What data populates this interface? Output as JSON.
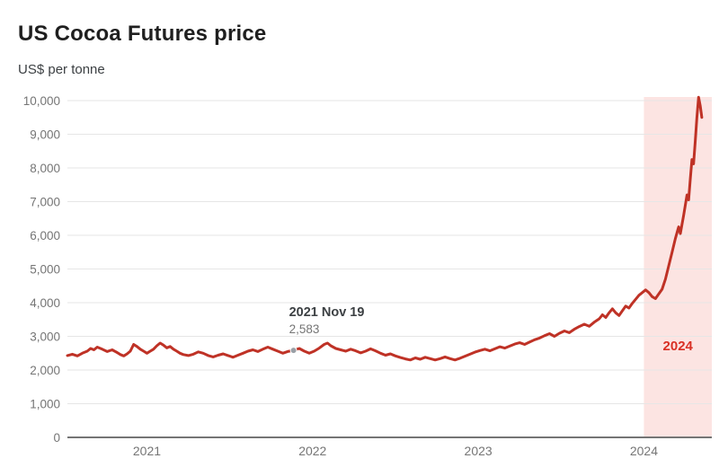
{
  "chart_data": {
    "type": "line",
    "title": "US Cocoa Futures price",
    "subtitle": "US$ per tonne",
    "x_domain": [
      2020.52,
      2024.41
    ],
    "y_domain": [
      0,
      10000
    ],
    "grid": true,
    "legend_position": "none",
    "colors": {
      "line": "#bf3226",
      "grid": "#e6e6e6",
      "axis_baseline": "#757575",
      "tick_label": "#757575",
      "annotation_label": "#3c4043",
      "annotation_value": "#757575",
      "annotation_dot": "#9aa0a6"
    },
    "y_ticks": [
      0,
      1000,
      2000,
      3000,
      4000,
      5000,
      6000,
      7000,
      8000,
      9000,
      10000
    ],
    "y_tick_labels": [
      "0",
      "1,000",
      "2,000",
      "3,000",
      "4,000",
      "5,000",
      "6,000",
      "7,000",
      "8,000",
      "9,000",
      "10,000"
    ],
    "x_ticks": [
      2021,
      2022,
      2023,
      2024
    ],
    "x_tick_labels": [
      "2021",
      "2022",
      "2023",
      "2024"
    ],
    "annotation": {
      "label": "2021 Nov 19",
      "value_label": "2,583",
      "x": 2021.885,
      "y": 2583
    },
    "highlight_band": {
      "from": 2024.0,
      "to": 2024.41,
      "label": "2024",
      "fill": "#fce4e2",
      "label_color": "#d93025"
    },
    "series": [
      {
        "name": "US Cocoa Futures price (US$ per tonne)",
        "color": "#bf3226",
        "points": [
          [
            2020.52,
            2430
          ],
          [
            2020.55,
            2470
          ],
          [
            2020.58,
            2420
          ],
          [
            2020.61,
            2500
          ],
          [
            2020.64,
            2560
          ],
          [
            2020.66,
            2640
          ],
          [
            2020.68,
            2600
          ],
          [
            2020.7,
            2680
          ],
          [
            2020.73,
            2620
          ],
          [
            2020.76,
            2550
          ],
          [
            2020.79,
            2600
          ],
          [
            2020.82,
            2520
          ],
          [
            2020.84,
            2460
          ],
          [
            2020.86,
            2420
          ],
          [
            2020.88,
            2480
          ],
          [
            2020.9,
            2560
          ],
          [
            2020.92,
            2760
          ],
          [
            2020.94,
            2700
          ],
          [
            2020.96,
            2620
          ],
          [
            2020.98,
            2560
          ],
          [
            2021.0,
            2500
          ],
          [
            2021.02,
            2560
          ],
          [
            2021.04,
            2620
          ],
          [
            2021.06,
            2720
          ],
          [
            2021.08,
            2800
          ],
          [
            2021.1,
            2740
          ],
          [
            2021.12,
            2660
          ],
          [
            2021.14,
            2700
          ],
          [
            2021.16,
            2620
          ],
          [
            2021.18,
            2560
          ],
          [
            2021.2,
            2500
          ],
          [
            2021.22,
            2460
          ],
          [
            2021.25,
            2430
          ],
          [
            2021.28,
            2470
          ],
          [
            2021.31,
            2540
          ],
          [
            2021.34,
            2500
          ],
          [
            2021.37,
            2430
          ],
          [
            2021.4,
            2390
          ],
          [
            2021.43,
            2440
          ],
          [
            2021.46,
            2480
          ],
          [
            2021.49,
            2430
          ],
          [
            2021.52,
            2380
          ],
          [
            2021.55,
            2440
          ],
          [
            2021.58,
            2500
          ],
          [
            2021.61,
            2560
          ],
          [
            2021.64,
            2600
          ],
          [
            2021.67,
            2550
          ],
          [
            2021.7,
            2620
          ],
          [
            2021.73,
            2680
          ],
          [
            2021.76,
            2620
          ],
          [
            2021.79,
            2560
          ],
          [
            2021.82,
            2500
          ],
          [
            2021.85,
            2550
          ],
          [
            2021.885,
            2583
          ],
          [
            2021.92,
            2640
          ],
          [
            2021.95,
            2560
          ],
          [
            2021.98,
            2500
          ],
          [
            2022.01,
            2560
          ],
          [
            2022.04,
            2650
          ],
          [
            2022.07,
            2760
          ],
          [
            2022.09,
            2800
          ],
          [
            2022.11,
            2720
          ],
          [
            2022.14,
            2640
          ],
          [
            2022.17,
            2600
          ],
          [
            2022.2,
            2560
          ],
          [
            2022.23,
            2620
          ],
          [
            2022.26,
            2570
          ],
          [
            2022.29,
            2510
          ],
          [
            2022.32,
            2560
          ],
          [
            2022.35,
            2630
          ],
          [
            2022.38,
            2570
          ],
          [
            2022.41,
            2500
          ],
          [
            2022.44,
            2440
          ],
          [
            2022.47,
            2480
          ],
          [
            2022.5,
            2420
          ],
          [
            2022.53,
            2370
          ],
          [
            2022.56,
            2330
          ],
          [
            2022.59,
            2300
          ],
          [
            2022.62,
            2360
          ],
          [
            2022.65,
            2320
          ],
          [
            2022.68,
            2380
          ],
          [
            2022.71,
            2340
          ],
          [
            2022.74,
            2300
          ],
          [
            2022.77,
            2340
          ],
          [
            2022.8,
            2390
          ],
          [
            2022.83,
            2340
          ],
          [
            2022.86,
            2300
          ],
          [
            2022.89,
            2350
          ],
          [
            2022.92,
            2410
          ],
          [
            2022.95,
            2470
          ],
          [
            2022.98,
            2530
          ],
          [
            2023.01,
            2580
          ],
          [
            2023.04,
            2620
          ],
          [
            2023.07,
            2570
          ],
          [
            2023.1,
            2630
          ],
          [
            2023.13,
            2690
          ],
          [
            2023.16,
            2650
          ],
          [
            2023.19,
            2710
          ],
          [
            2023.22,
            2770
          ],
          [
            2023.25,
            2810
          ],
          [
            2023.28,
            2760
          ],
          [
            2023.31,
            2830
          ],
          [
            2023.34,
            2900
          ],
          [
            2023.37,
            2950
          ],
          [
            2023.4,
            3020
          ],
          [
            2023.43,
            3080
          ],
          [
            2023.46,
            3000
          ],
          [
            2023.49,
            3090
          ],
          [
            2023.52,
            3160
          ],
          [
            2023.55,
            3110
          ],
          [
            2023.58,
            3210
          ],
          [
            2023.61,
            3290
          ],
          [
            2023.64,
            3360
          ],
          [
            2023.67,
            3300
          ],
          [
            2023.7,
            3420
          ],
          [
            2023.73,
            3520
          ],
          [
            2023.75,
            3640
          ],
          [
            2023.77,
            3560
          ],
          [
            2023.79,
            3700
          ],
          [
            2023.81,
            3820
          ],
          [
            2023.83,
            3700
          ],
          [
            2023.85,
            3620
          ],
          [
            2023.87,
            3760
          ],
          [
            2023.89,
            3900
          ],
          [
            2023.91,
            3840
          ],
          [
            2023.93,
            3980
          ],
          [
            2023.95,
            4100
          ],
          [
            2023.97,
            4220
          ],
          [
            2023.99,
            4300
          ],
          [
            2024.01,
            4380
          ],
          [
            2024.03,
            4300
          ],
          [
            2024.05,
            4180
          ],
          [
            2024.07,
            4120
          ],
          [
            2024.09,
            4260
          ],
          [
            2024.11,
            4400
          ],
          [
            2024.13,
            4700
          ],
          [
            2024.15,
            5100
          ],
          [
            2024.17,
            5500
          ],
          [
            2024.19,
            5900
          ],
          [
            2024.21,
            6250
          ],
          [
            2024.22,
            6050
          ],
          [
            2024.24,
            6600
          ],
          [
            2024.26,
            7200
          ],
          [
            2024.27,
            7050
          ],
          [
            2024.28,
            7650
          ],
          [
            2024.29,
            8250
          ],
          [
            2024.3,
            8120
          ],
          [
            2024.31,
            8800
          ],
          [
            2024.32,
            9500
          ],
          [
            2024.33,
            10100
          ],
          [
            2024.34,
            9850
          ],
          [
            2024.35,
            9500
          ]
        ]
      }
    ]
  }
}
